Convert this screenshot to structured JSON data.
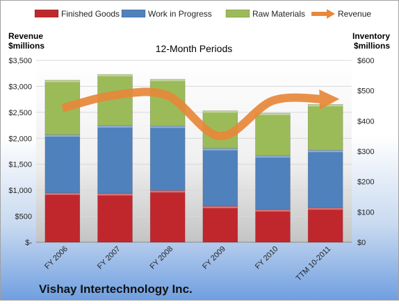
{
  "company": "Vishay Intertechnology Inc.",
  "chart_data": {
    "type": "bar",
    "stacked": true,
    "title": "12-Month Periods",
    "y_left_label": [
      "Revenue",
      "$millions"
    ],
    "y_right_label": [
      "Inventory",
      "$millions"
    ],
    "categories": [
      "FY 2006",
      "FY 2007",
      "FY 2008",
      "FY 2009",
      "FY 2010",
      "TTM 10-2011"
    ],
    "y_left_ticks": [
      "$-",
      "$500",
      "$1,000",
      "$1,500",
      "$2,000",
      "$2,500",
      "$3,000",
      "$3,500"
    ],
    "y_right_ticks": [
      "$0",
      "$100",
      "$200",
      "$300",
      "$400",
      "$500",
      "$600"
    ],
    "ylim_left": [
      0,
      3500
    ],
    "ylim_right": [
      0,
      600
    ],
    "legend_position": "top",
    "series": [
      {
        "name": "Finished Goods",
        "axis": "right",
        "type": "bar",
        "color": "#c0272d",
        "values": [
          163,
          161,
          171,
          119,
          108,
          114
        ]
      },
      {
        "name": "Work in Progress",
        "axis": "right",
        "type": "bar",
        "color": "#4f81bd",
        "values": [
          192,
          224,
          213,
          191,
          178,
          190
        ]
      },
      {
        "name": "Raw Materials",
        "axis": "right",
        "type": "bar",
        "color": "#9bbb59",
        "values": [
          180,
          169,
          154,
          124,
          140,
          151
        ]
      },
      {
        "name": "Revenue",
        "axis": "left",
        "type": "line",
        "color": "#e8883a",
        "values": [
          2581,
          2833,
          2822,
          2042,
          2725,
          2750
        ]
      }
    ]
  }
}
